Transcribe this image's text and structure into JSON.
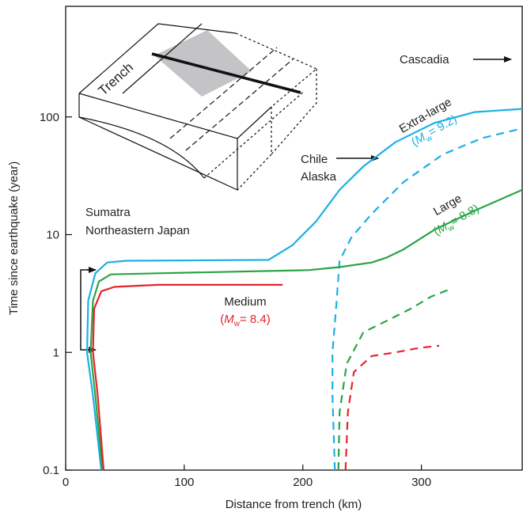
{
  "chart_data": {
    "type": "line",
    "xlabel": "Distance from trench (km)",
    "ylabel": "Time since earthquake (year)",
    "xlim": [
      0,
      385
    ],
    "ylim": [
      0.1,
      870
    ],
    "log_y": true,
    "xticks": [
      0,
      100,
      200,
      300
    ],
    "yticks": [
      0.1,
      1,
      10,
      100
    ],
    "series": [
      {
        "name": "Extra-large",
        "magnitude": [
          "(",
          "M",
          "w",
          "= 9.2)"
        ],
        "color": "#1ab0e5",
        "dashed": false,
        "x": [
          30,
          23,
          18,
          19,
          25,
          35,
          51,
          171,
          191,
          211,
          231,
          251,
          278,
          311,
          345,
          385
        ],
        "values": [
          0.1,
          0.43,
          1,
          2.75,
          4.7,
          5.8,
          6.0,
          6.1,
          8.1,
          12.9,
          24,
          38,
          61,
          89,
          110,
          117
        ]
      },
      {
        "color": "#1ab0e5",
        "dashed": true,
        "x": [
          227,
          225,
          225,
          228,
          231,
          241,
          258,
          285,
          318,
          351,
          385
        ],
        "values": [
          0.1,
          0.43,
          1,
          2.35,
          6.0,
          9.5,
          15,
          28,
          48,
          66,
          80
        ]
      },
      {
        "name": "Large",
        "magnitude": [
          "(",
          "M",
          "w",
          "= 8.8)"
        ],
        "color": "#2aa345",
        "dashed": false,
        "x": [
          31,
          25,
          21,
          23,
          28,
          38,
          78,
          205,
          231,
          258,
          271,
          285,
          311,
          345,
          385
        ],
        "values": [
          0.1,
          0.43,
          1,
          2.75,
          4.0,
          4.6,
          4.7,
          5.0,
          5.3,
          5.8,
          6.4,
          7.5,
          11,
          16,
          24
        ]
      },
      {
        "color": "#2aa345",
        "dashed": true,
        "x": [
          230,
          231,
          237,
          251,
          271,
          291,
          308,
          325
        ],
        "values": [
          0.1,
          0.31,
          0.8,
          1.48,
          1.86,
          2.35,
          2.97,
          3.47
        ]
      },
      {
        "name": "Medium",
        "magnitude": [
          "(",
          "M",
          "w",
          "= 8.4)"
        ],
        "color": "#e4252b",
        "dashed": false,
        "x": [
          32,
          27,
          23,
          24,
          30,
          41,
          78,
          183
        ],
        "values": [
          0.1,
          0.43,
          1,
          2.35,
          3.3,
          3.6,
          3.75,
          3.75
        ]
      },
      {
        "color": "#e4252b",
        "dashed": true,
        "x": [
          236,
          238,
          243,
          258,
          278,
          298,
          315
        ],
        "values": [
          0.1,
          0.31,
          0.68,
          0.93,
          1.0,
          1.09,
          1.14
        ]
      }
    ],
    "annotations": {
      "cascadia": "Cascadia",
      "chile": "Chile",
      "alaska": "Alaska",
      "sumatra": "Sumatra",
      "japan": "Northeastern Japan",
      "trench": "Trench"
    }
  }
}
